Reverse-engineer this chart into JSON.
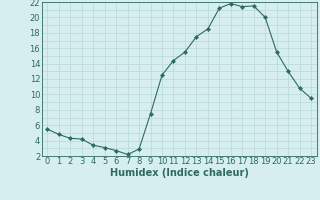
{
  "x": [
    0,
    1,
    2,
    3,
    4,
    5,
    6,
    7,
    8,
    9,
    10,
    11,
    12,
    13,
    14,
    15,
    16,
    17,
    18,
    19,
    20,
    21,
    22,
    23
  ],
  "y": [
    5.5,
    4.8,
    4.3,
    4.2,
    3.4,
    3.1,
    2.7,
    2.2,
    2.9,
    7.5,
    12.5,
    14.4,
    15.5,
    17.5,
    18.5,
    21.2,
    21.8,
    21.4,
    21.5,
    20.0,
    15.5,
    13.0,
    10.8,
    9.5
  ],
  "line_color": "#2e6b5e",
  "marker": "D",
  "marker_size": 2,
  "bg_color": "#d6eeee",
  "grid_color": "#b8d8d8",
  "xlabel": "Humidex (Indice chaleur)",
  "xlim": [
    -0.5,
    23.5
  ],
  "ylim": [
    2,
    22
  ],
  "xticks": [
    0,
    1,
    2,
    3,
    4,
    5,
    6,
    7,
    8,
    9,
    10,
    11,
    12,
    13,
    14,
    15,
    16,
    17,
    18,
    19,
    20,
    21,
    22,
    23
  ],
  "yticks": [
    2,
    4,
    6,
    8,
    10,
    12,
    14,
    16,
    18,
    20,
    22
  ],
  "axis_fontsize": 6,
  "xlabel_fontsize": 7
}
